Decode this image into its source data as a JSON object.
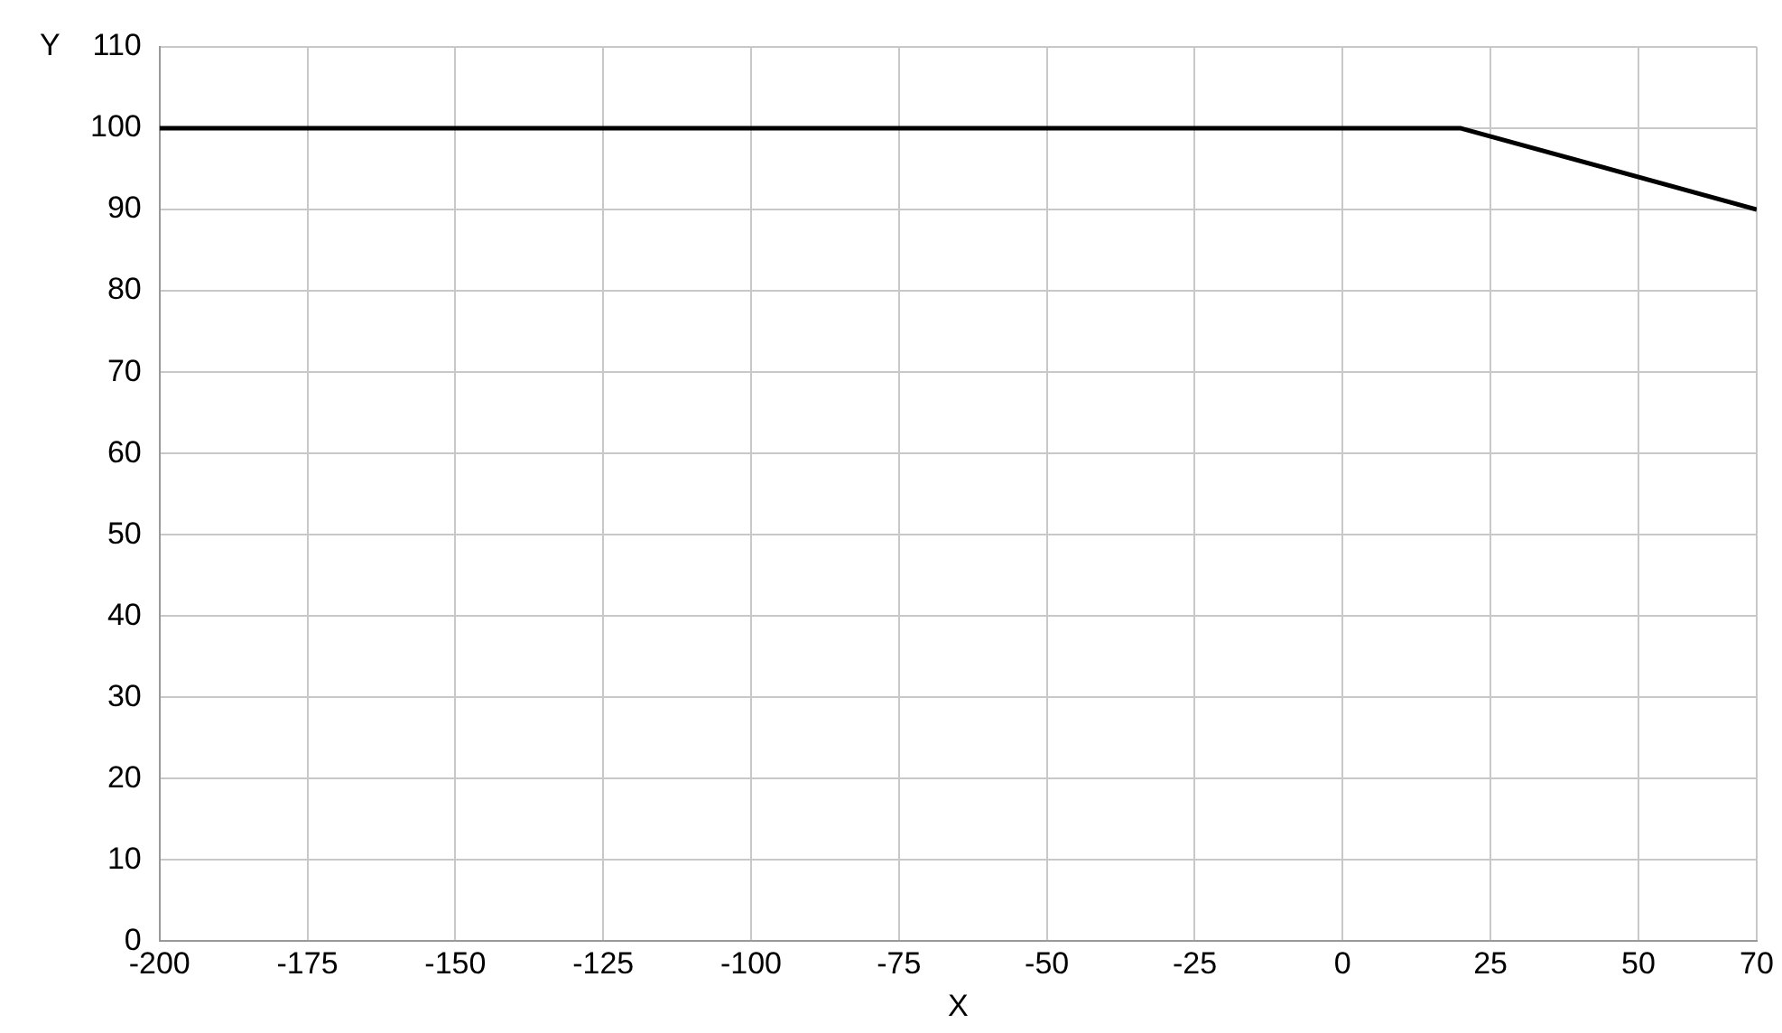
{
  "chart_data": {
    "type": "line",
    "xlabel": "X",
    "ylabel": "Y",
    "x": [
      -200,
      20,
      70
    ],
    "series": [
      {
        "color": "#000000",
        "values": [
          100,
          100,
          90
        ]
      }
    ],
    "xlim": [
      -200,
      70
    ],
    "xticks": [
      -200,
      -175,
      -150,
      -125,
      -100,
      -75,
      -50,
      -25,
      0,
      25,
      50,
      70
    ],
    "ylim": [
      0,
      110
    ],
    "yticks": [
      0,
      10,
      20,
      30,
      40,
      50,
      60,
      70,
      80,
      90,
      100,
      110
    ],
    "grid": true,
    "legend": false,
    "marker": "none",
    "line_style": "solid"
  }
}
